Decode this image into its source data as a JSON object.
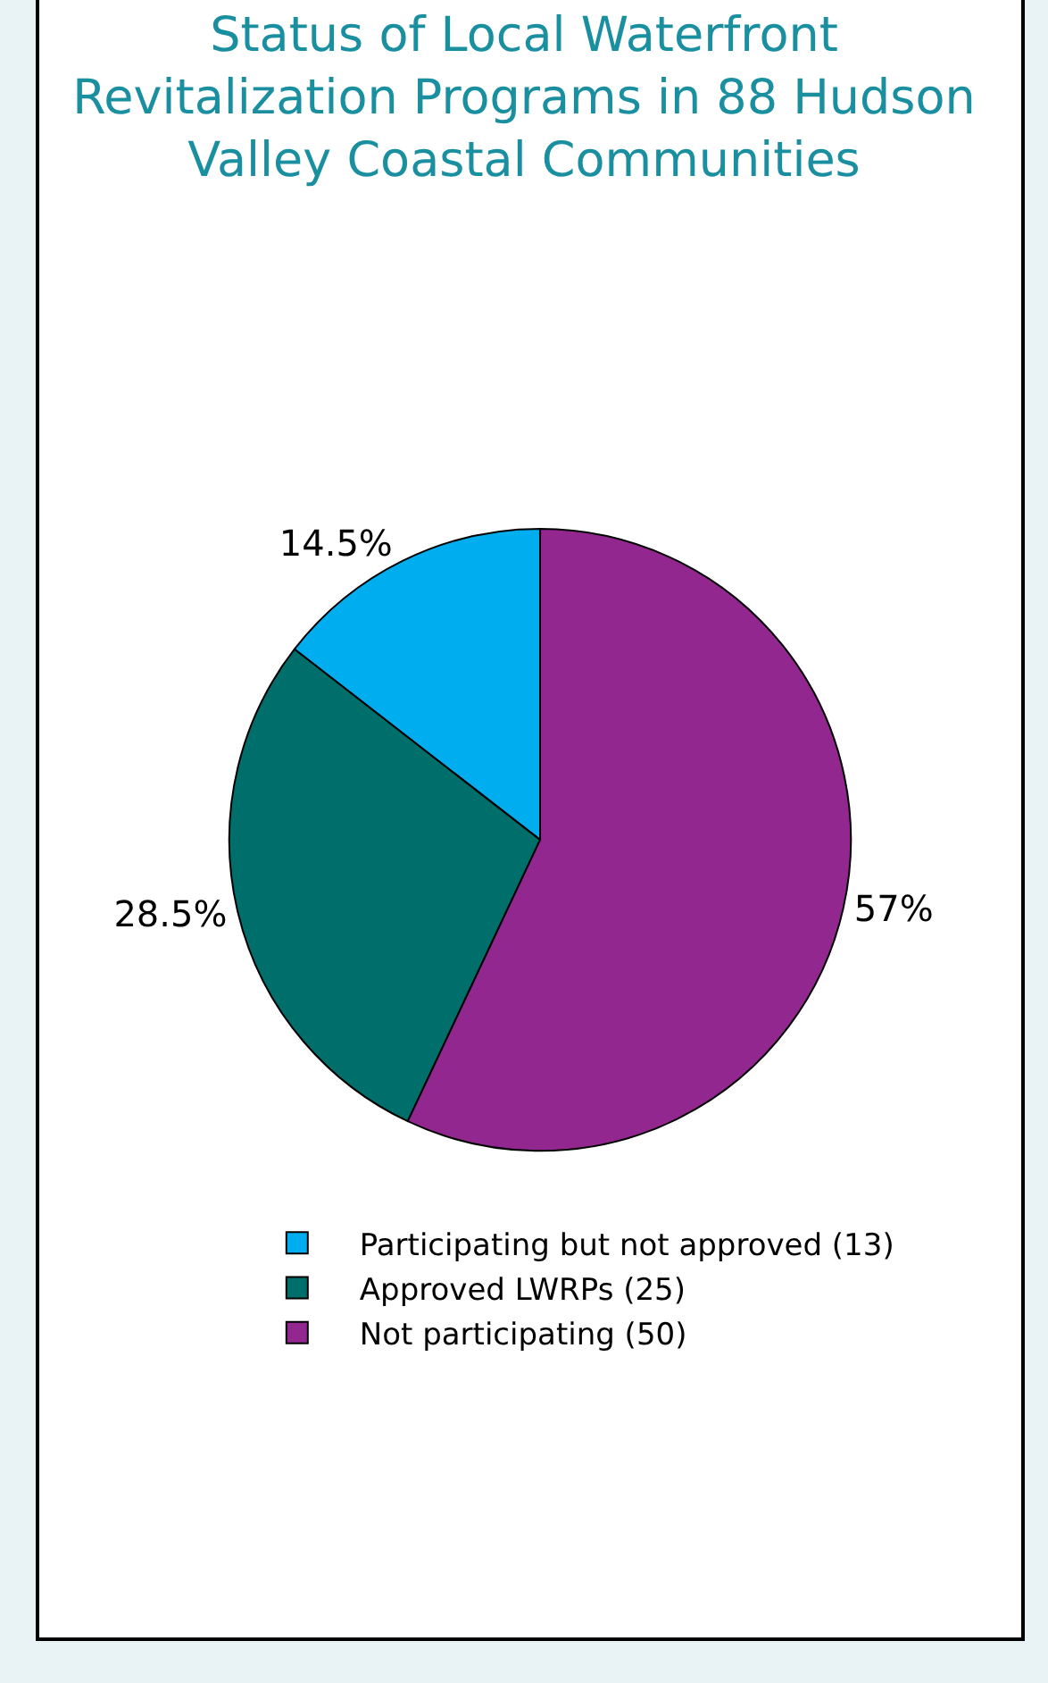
{
  "chart_data": {
    "type": "pie",
    "title": "Status of Local Waterfront Revitalization Programs in 88 Hudson Valley Coastal Communities",
    "categories": [
      "Participating but not approved (13)",
      "Approved LWRPs (25)",
      "Not participating (50)"
    ],
    "values": [
      14.5,
      28.5,
      57
    ],
    "value_labels": [
      "14.5%",
      "28.5%",
      "57%"
    ],
    "colors": [
      "#00aeef",
      "#006f6b",
      "#92278f"
    ],
    "legend": "bottom"
  }
}
